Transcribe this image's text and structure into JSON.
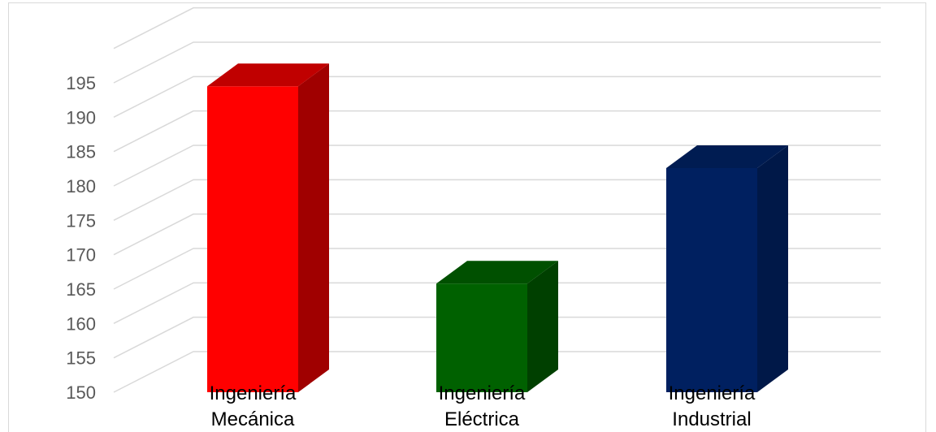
{
  "chart_data": {
    "type": "bar",
    "categories": [
      [
        "Ingeniería",
        "Mecánica"
      ],
      [
        "Ingeniería",
        "Eléctrica"
      ],
      [
        "Ingeniería",
        "Industrial"
      ]
    ],
    "values": [
      194.5,
      165.8,
      182.6
    ],
    "ylim": [
      150,
      195
    ],
    "yticks": [
      150,
      155,
      160,
      165,
      170,
      175,
      180,
      185,
      190,
      195
    ],
    "title": "",
    "xlabel": "",
    "ylabel": "",
    "grid": true,
    "style": "3d-column",
    "colors": {
      "front": [
        "#ff0000",
        "#006100",
        "#002060"
      ],
      "side": [
        "#a00000",
        "#004000",
        "#001848"
      ],
      "top": [
        "#c00000",
        "#005000",
        "#001c52"
      ]
    }
  }
}
